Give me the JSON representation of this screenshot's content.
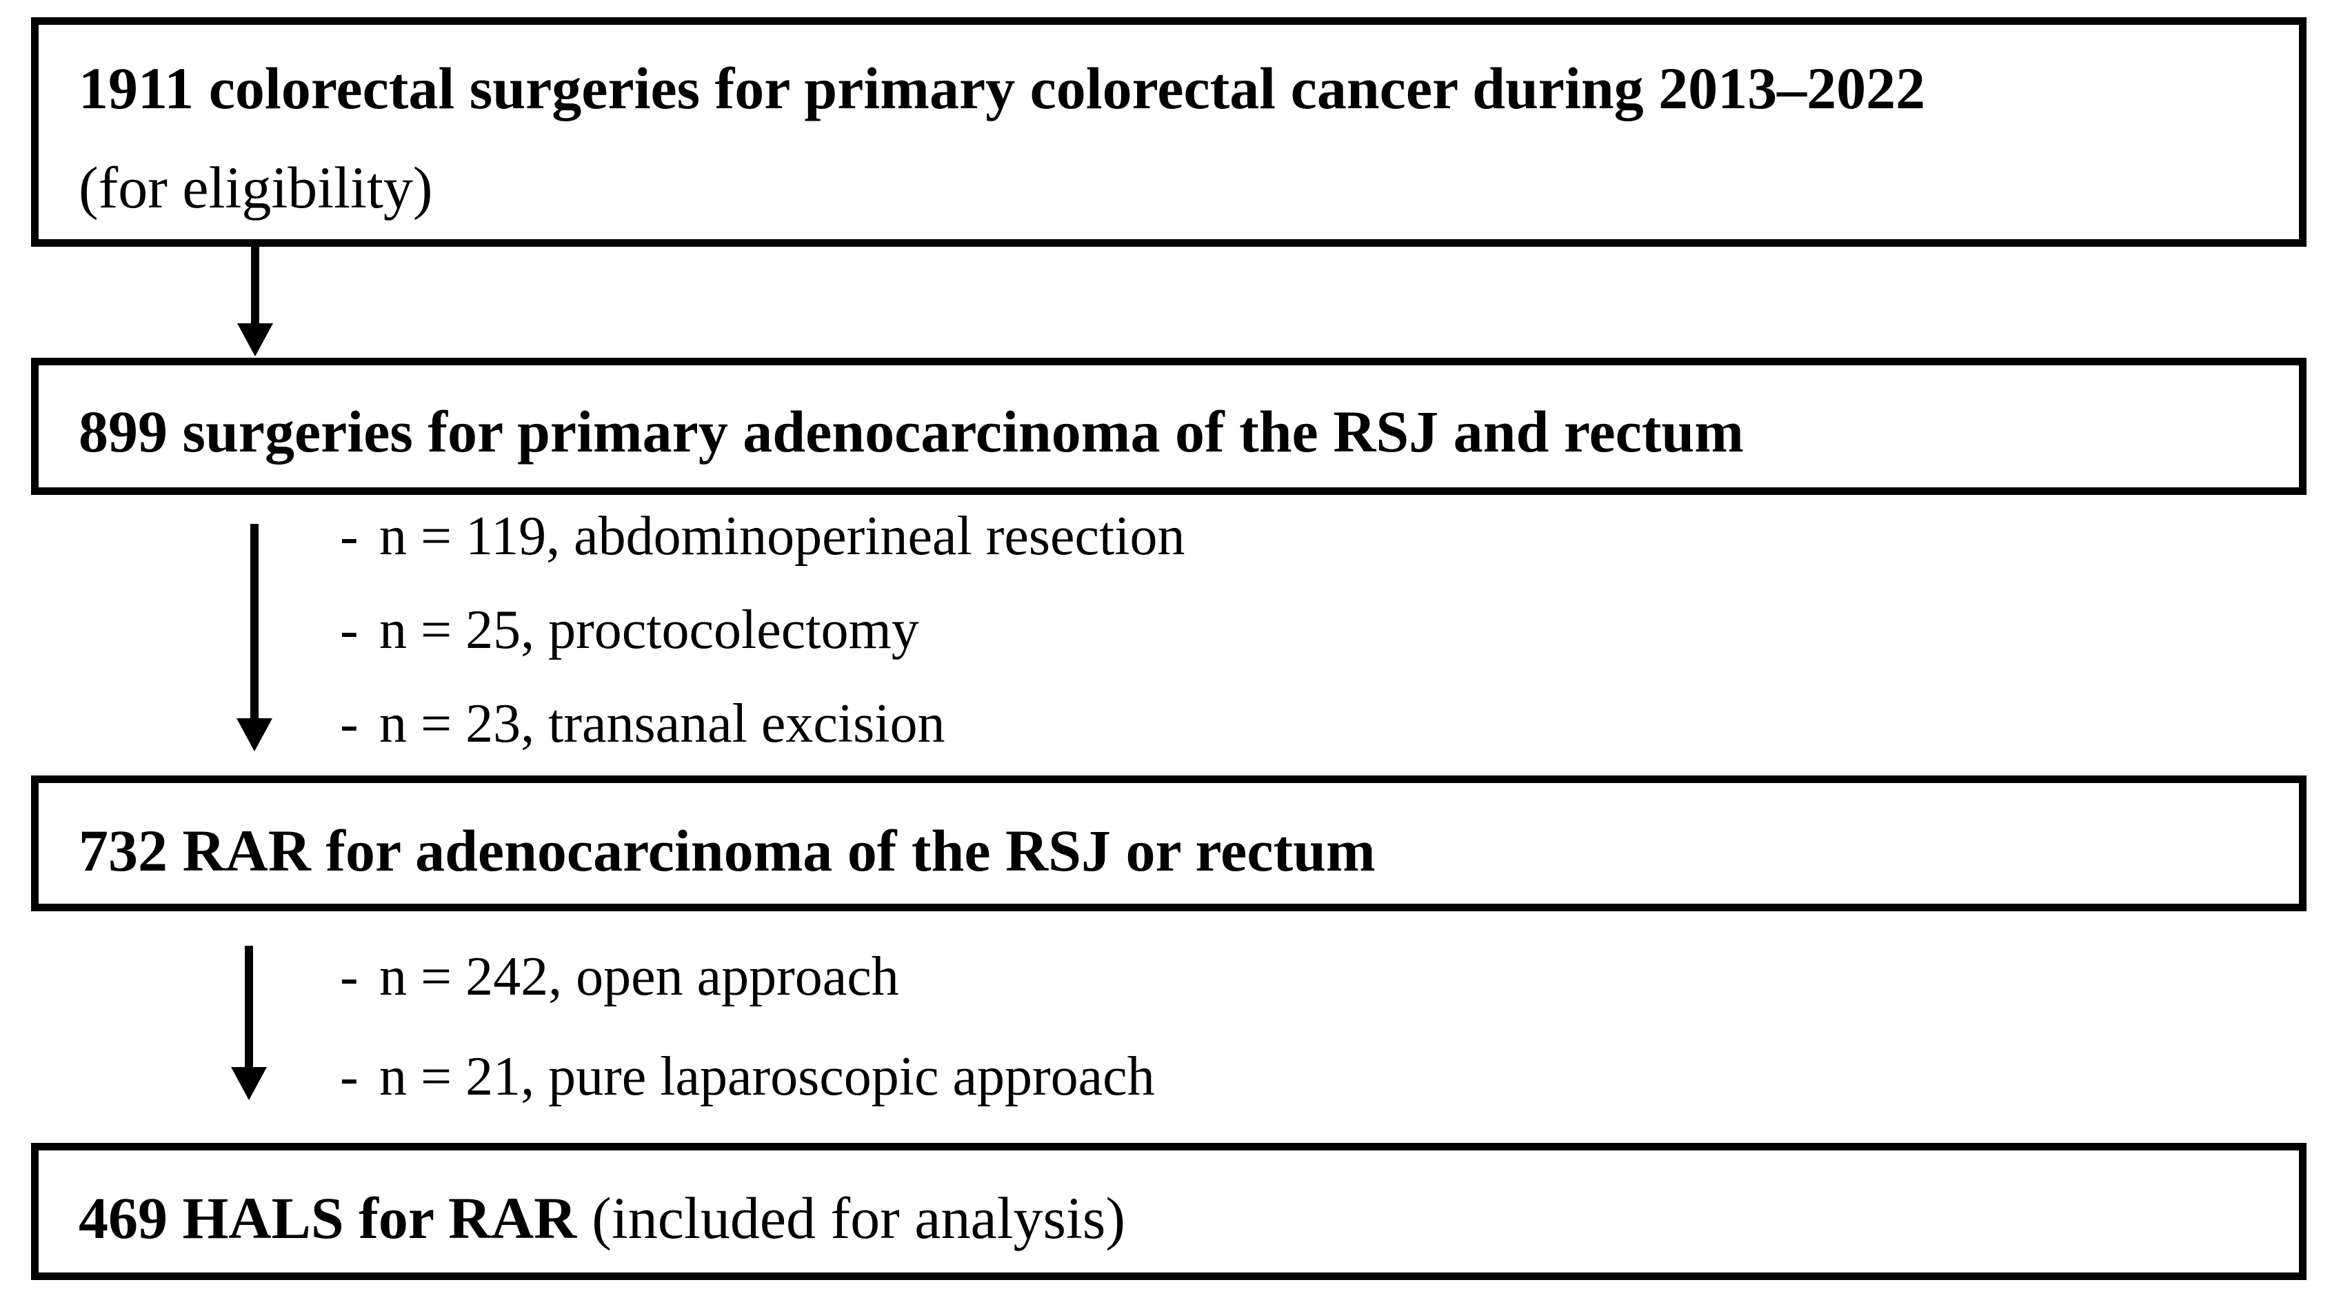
{
  "figure": {
    "colors": {
      "ink": "#000000",
      "background": "#ffffff"
    },
    "bullet": "-",
    "box_eligibility": {
      "title": "1911 colorectal surgeries for primary colorectal cancer during 2013–2022",
      "subtitle": "(for eligibility)"
    },
    "box_surgeries": {
      "title": "899 surgeries for primary adenocarcinoma of the RSJ and rectum"
    },
    "box_rar": {
      "title": "732 RAR for adenocarcinoma of the RSJ or rectum"
    },
    "box_hals": {
      "title": "469 HALS for RAR",
      "note": "(included for analysis)"
    },
    "exclusions_group1": [
      {
        "label": "n = 119, abdominoperineal resection"
      },
      {
        "label": "n = 25, proctocolectomy"
      },
      {
        "label": "n = 23, transanal excision"
      }
    ],
    "exclusions_group2": [
      {
        "label": "n = 242, open approach"
      },
      {
        "label": "n = 21, pure laparoscopic approach"
      }
    ]
  }
}
